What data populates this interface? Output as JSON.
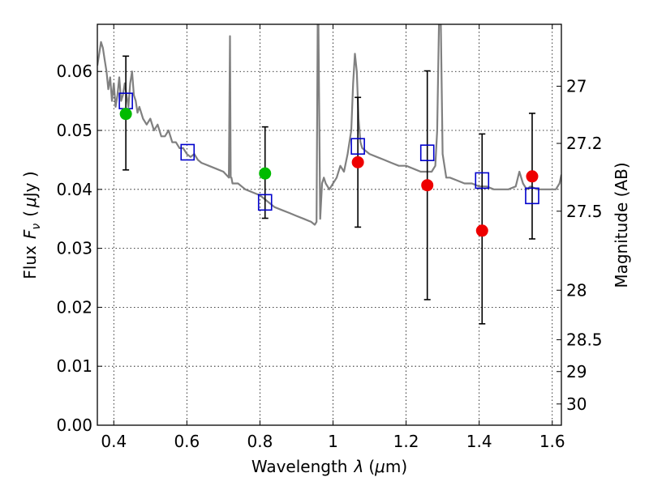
{
  "chart_data": {
    "type": "scatter",
    "title": "",
    "xlabel": "Wavelength",
    "xlabel_symbol": "λ",
    "xlabel_unit_open": "(",
    "xlabel_unit_mu": "μ",
    "xlabel_unit_tail": "m)",
    "ylabel": "Flux",
    "ylabel_symbol": "F",
    "ylabel_subscript": "ν",
    "ylabel_unit_open": "(",
    "ylabel_unit_mu": "μ",
    "ylabel_unit_tail": "Jy )",
    "y2label": "Magnitude (AB)",
    "xlim": [
      0.355,
      1.625
    ],
    "ylim": [
      0.0,
      0.068
    ],
    "xticks": [
      0.4,
      0.6,
      0.8,
      1.0,
      1.2,
      1.4,
      1.6
    ],
    "xtick_labels": [
      "0.4",
      "0.6",
      "0.8",
      "1",
      "1.2",
      "1.4",
      "1.6"
    ],
    "yticks": [
      0.0,
      0.01,
      0.02,
      0.03,
      0.04,
      0.05,
      0.06
    ],
    "ytick_labels": [
      "0.00",
      "0.01",
      "0.02",
      "0.03",
      "0.04",
      "0.05",
      "0.06"
    ],
    "y2ticks": [
      {
        "label": "27",
        "flux": 0.0575
      },
      {
        "label": "27.2",
        "flux": 0.0478
      },
      {
        "label": "27.5",
        "flux": 0.0363
      },
      {
        "label": "28",
        "flux": 0.0229
      },
      {
        "label": "28.5",
        "flux": 0.0145
      },
      {
        "label": "29",
        "flux": 0.0091
      },
      {
        "label": "30",
        "flux": 0.0036
      }
    ],
    "grid": true,
    "colors": {
      "spectrum": "#808080",
      "model": "#0000cc",
      "green": "#00bb00",
      "red": "#ee0000",
      "errorbar": "#000000"
    },
    "series": [
      {
        "kind": "line",
        "x": [
          0.355,
          0.36,
          0.365,
          0.37,
          0.375,
          0.38,
          0.385,
          0.39,
          0.395,
          0.4,
          0.405,
          0.41,
          0.415,
          0.42,
          0.425,
          0.43,
          0.435,
          0.44,
          0.445,
          0.45,
          0.455,
          0.46,
          0.465,
          0.47,
          0.48,
          0.49,
          0.5,
          0.51,
          0.52,
          0.53,
          0.54,
          0.55,
          0.56,
          0.57,
          0.58,
          0.59,
          0.6,
          0.61,
          0.62,
          0.63,
          0.64,
          0.66,
          0.68,
          0.7,
          0.715,
          0.718,
          0.72,
          0.722,
          0.725,
          0.74,
          0.76,
          0.78,
          0.8,
          0.82,
          0.84,
          0.86,
          0.88,
          0.9,
          0.92,
          0.94,
          0.95,
          0.955,
          0.958,
          0.96,
          0.965,
          0.97,
          0.975,
          0.98,
          0.99,
          1.0,
          1.01,
          1.02,
          1.03,
          1.04,
          1.05,
          1.055,
          1.06,
          1.065,
          1.07,
          1.075,
          1.08,
          1.09,
          1.1,
          1.12,
          1.14,
          1.16,
          1.18,
          1.2,
          1.22,
          1.24,
          1.26,
          1.27,
          1.28,
          1.285,
          1.29,
          1.295,
          1.3,
          1.31,
          1.32,
          1.34,
          1.36,
          1.38,
          1.4,
          1.42,
          1.44,
          1.46,
          1.48,
          1.5,
          1.51,
          1.52,
          1.53,
          1.54,
          1.56,
          1.58,
          1.6,
          1.61,
          1.62,
          1.625
        ],
        "y": [
          0.061,
          0.063,
          0.065,
          0.064,
          0.062,
          0.06,
          0.057,
          0.059,
          0.055,
          0.058,
          0.054,
          0.056,
          0.059,
          0.055,
          0.056,
          0.058,
          0.056,
          0.054,
          0.058,
          0.06,
          0.056,
          0.055,
          0.053,
          0.054,
          0.052,
          0.051,
          0.052,
          0.05,
          0.051,
          0.049,
          0.049,
          0.05,
          0.048,
          0.048,
          0.047,
          0.047,
          0.046,
          0.0455,
          0.046,
          0.045,
          0.0445,
          0.044,
          0.0435,
          0.043,
          0.042,
          0.066,
          0.042,
          0.042,
          0.041,
          0.041,
          0.04,
          0.0395,
          0.039,
          0.038,
          0.037,
          0.0365,
          0.036,
          0.0355,
          0.035,
          0.0345,
          0.034,
          0.0345,
          0.068,
          0.068,
          0.035,
          0.041,
          0.042,
          0.041,
          0.04,
          0.041,
          0.042,
          0.044,
          0.043,
          0.046,
          0.05,
          0.058,
          0.063,
          0.06,
          0.052,
          0.048,
          0.047,
          0.0465,
          0.046,
          0.0455,
          0.045,
          0.0445,
          0.044,
          0.044,
          0.0435,
          0.043,
          0.043,
          0.043,
          0.044,
          0.05,
          0.068,
          0.068,
          0.046,
          0.042,
          0.042,
          0.0415,
          0.041,
          0.041,
          0.0405,
          0.0405,
          0.04,
          0.04,
          0.04,
          0.0405,
          0.043,
          0.041,
          0.04,
          0.0405,
          0.04,
          0.04,
          0.04,
          0.04,
          0.041,
          0.0425
        ],
        "color": "#808080"
      },
      {
        "kind": "model",
        "marker": "open-square",
        "x": [
          0.433,
          0.602,
          0.814,
          1.068,
          1.258,
          1.408,
          1.545
        ],
        "y": [
          0.055,
          0.0463,
          0.0378,
          0.0473,
          0.0462,
          0.0415,
          0.0389
        ]
      },
      {
        "kind": "observed",
        "marker": "filled-circle",
        "x": [
          0.433,
          0.814,
          1.068,
          1.258,
          1.408,
          1.545
        ],
        "y": [
          0.0528,
          0.0427,
          0.0446,
          0.0407,
          0.033,
          0.0422
        ],
        "yerr_low": [
          0.0433,
          0.0351,
          0.0336,
          0.0213,
          0.0172,
          0.0316
        ],
        "yerr_high": [
          0.0626,
          0.0506,
          0.0556,
          0.0601,
          0.0494,
          0.0529
        ],
        "colors": [
          "green",
          "green",
          "red",
          "red",
          "red",
          "red"
        ]
      }
    ]
  }
}
